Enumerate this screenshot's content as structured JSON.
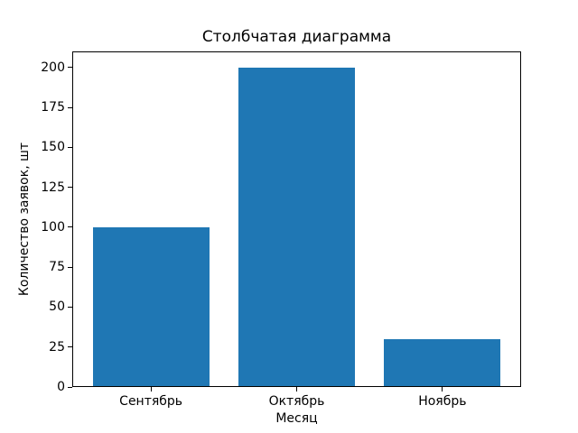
{
  "chart_data": {
    "type": "bar",
    "title": "Столбчатая диаграмма",
    "xlabel": "Месяц",
    "ylabel": "Количество заявок, шт",
    "categories": [
      "Сентябрь",
      "Октябрь",
      "Ноябрь"
    ],
    "values": [
      100,
      200,
      30
    ],
    "yticks": [
      0,
      25,
      50,
      75,
      100,
      125,
      150,
      175,
      200
    ],
    "ylim": [
      0,
      210
    ],
    "grid": false,
    "bar_color": "#1f77b4",
    "axis_color": "#000000",
    "background_color": "#ffffff"
  }
}
